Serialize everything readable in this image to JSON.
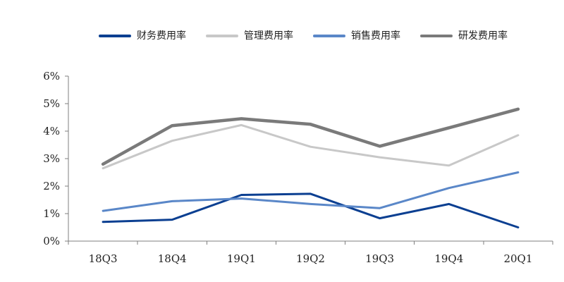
{
  "chart_data": {
    "type": "line",
    "categories": [
      "18Q3",
      "18Q4",
      "19Q1",
      "19Q2",
      "19Q3",
      "19Q4",
      "20Q1"
    ],
    "y_ticks": [
      "0%",
      "1%",
      "2%",
      "3%",
      "4%",
      "5%",
      "6%"
    ],
    "ylim": [
      0,
      6
    ],
    "grid": false,
    "legend_position": "top",
    "series": [
      {
        "name": "财务费用率",
        "color": "#0B3F91",
        "values": [
          0.7,
          0.78,
          1.68,
          1.72,
          0.83,
          1.35,
          0.5
        ]
      },
      {
        "name": "管理费用率",
        "color": "#C8C8C8",
        "values": [
          2.65,
          3.65,
          4.22,
          3.43,
          3.05,
          2.75,
          3.85
        ]
      },
      {
        "name": "销售费用率",
        "color": "#5A87C8",
        "values": [
          1.1,
          1.45,
          1.55,
          1.35,
          1.2,
          1.93,
          2.5
        ]
      },
      {
        "name": "研发费用率",
        "color": "#7A7A7A",
        "values": [
          2.8,
          4.2,
          4.45,
          4.25,
          3.45,
          4.12,
          4.8
        ]
      }
    ]
  }
}
